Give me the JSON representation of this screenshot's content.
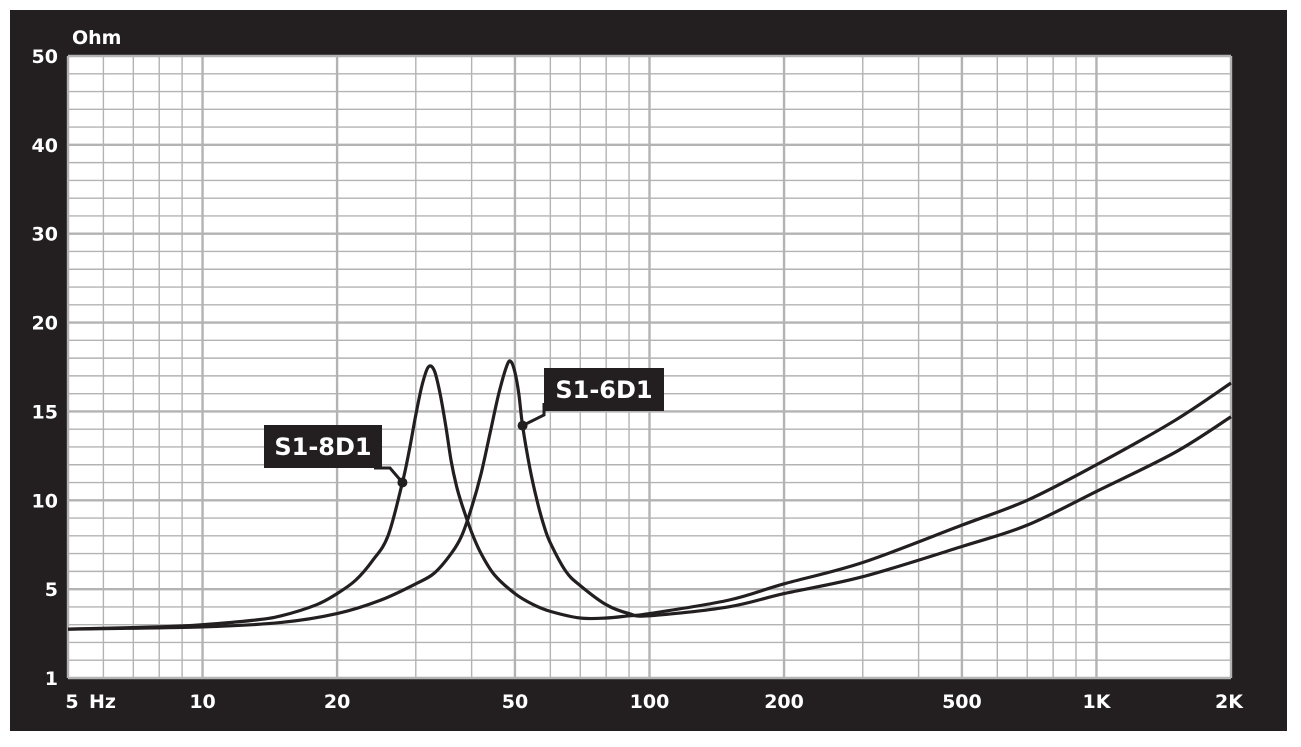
{
  "chart_data": {
    "type": "line",
    "x_scale": "log",
    "y_scale": "piecewise",
    "y_unit_label": "Ohm",
    "x_unit_label": "Hz",
    "xlim": [
      5,
      2000
    ],
    "y_breakpoints": [
      1,
      5,
      10,
      15,
      20,
      30,
      40,
      50
    ],
    "y_tick_labels": [
      "1",
      "5",
      "10",
      "15",
      "20",
      "30",
      "40",
      "50"
    ],
    "x_ticks": [
      {
        "value": 5,
        "label": "5"
      },
      {
        "value": 10,
        "label": "10"
      },
      {
        "value": 20,
        "label": "20"
      },
      {
        "value": 50,
        "label": "50"
      },
      {
        "value": 100,
        "label": "100"
      },
      {
        "value": 200,
        "label": "200"
      },
      {
        "value": 500,
        "label": "500"
      },
      {
        "value": 1000,
        "label": "1K"
      },
      {
        "value": 2000,
        "label": "2K"
      }
    ],
    "series": [
      {
        "name": "S1-8D1",
        "label_at": {
          "x": 28,
          "y": 11
        },
        "points": [
          [
            5,
            3.2
          ],
          [
            8,
            3.3
          ],
          [
            10,
            3.4
          ],
          [
            13,
            3.6
          ],
          [
            15,
            3.8
          ],
          [
            18,
            4.3
          ],
          [
            20,
            4.8
          ],
          [
            22,
            5.5
          ],
          [
            24,
            6.6
          ],
          [
            26,
            8.0
          ],
          [
            28,
            11.0
          ],
          [
            29,
            12.8
          ],
          [
            30,
            14.8
          ],
          [
            31,
            16.5
          ],
          [
            32,
            17.5
          ],
          [
            33,
            17.3
          ],
          [
            34,
            16.0
          ],
          [
            35,
            14.2
          ],
          [
            36,
            12.2
          ],
          [
            37,
            10.8
          ],
          [
            38,
            9.8
          ],
          [
            40,
            8.2
          ],
          [
            42,
            7.0
          ],
          [
            45,
            5.8
          ],
          [
            50,
            4.8
          ],
          [
            55,
            4.3
          ],
          [
            60,
            4.0
          ],
          [
            70,
            3.7
          ],
          [
            80,
            3.7
          ],
          [
            90,
            3.8
          ],
          [
            100,
            3.9
          ],
          [
            150,
            4.5
          ],
          [
            200,
            5.3
          ],
          [
            300,
            6.5
          ],
          [
            500,
            8.6
          ],
          [
            700,
            10.0
          ],
          [
            1000,
            12.0
          ],
          [
            1500,
            14.5
          ],
          [
            2000,
            16.6
          ]
        ]
      },
      {
        "name": "S1-6D1",
        "label_at": {
          "x": 52,
          "y": 14.2
        },
        "points": [
          [
            5,
            3.2
          ],
          [
            10,
            3.3
          ],
          [
            15,
            3.5
          ],
          [
            20,
            3.9
          ],
          [
            25,
            4.5
          ],
          [
            30,
            5.3
          ],
          [
            33,
            5.9
          ],
          [
            36,
            7.0
          ],
          [
            38,
            8.0
          ],
          [
            40,
            9.6
          ],
          [
            42,
            11.5
          ],
          [
            44,
            13.8
          ],
          [
            46,
            16.0
          ],
          [
            48,
            17.6
          ],
          [
            49,
            17.8
          ],
          [
            50,
            17.2
          ],
          [
            51,
            16.0
          ],
          [
            52,
            14.2
          ],
          [
            54,
            11.8
          ],
          [
            56,
            10.0
          ],
          [
            58,
            8.6
          ],
          [
            60,
            7.6
          ],
          [
            65,
            6.0
          ],
          [
            70,
            5.2
          ],
          [
            80,
            4.3
          ],
          [
            90,
            3.9
          ],
          [
            100,
            3.8
          ],
          [
            150,
            4.2
          ],
          [
            200,
            4.8
          ],
          [
            300,
            5.7
          ],
          [
            500,
            7.4
          ],
          [
            700,
            8.6
          ],
          [
            1000,
            10.5
          ],
          [
            1500,
            12.7
          ],
          [
            2000,
            14.7
          ]
        ]
      }
    ],
    "grid": true,
    "colors": {
      "background": "#231f20",
      "plot": "#ffffff",
      "grid": "#b3b3b3",
      "line": "#231f20",
      "text": "#ffffff"
    }
  }
}
